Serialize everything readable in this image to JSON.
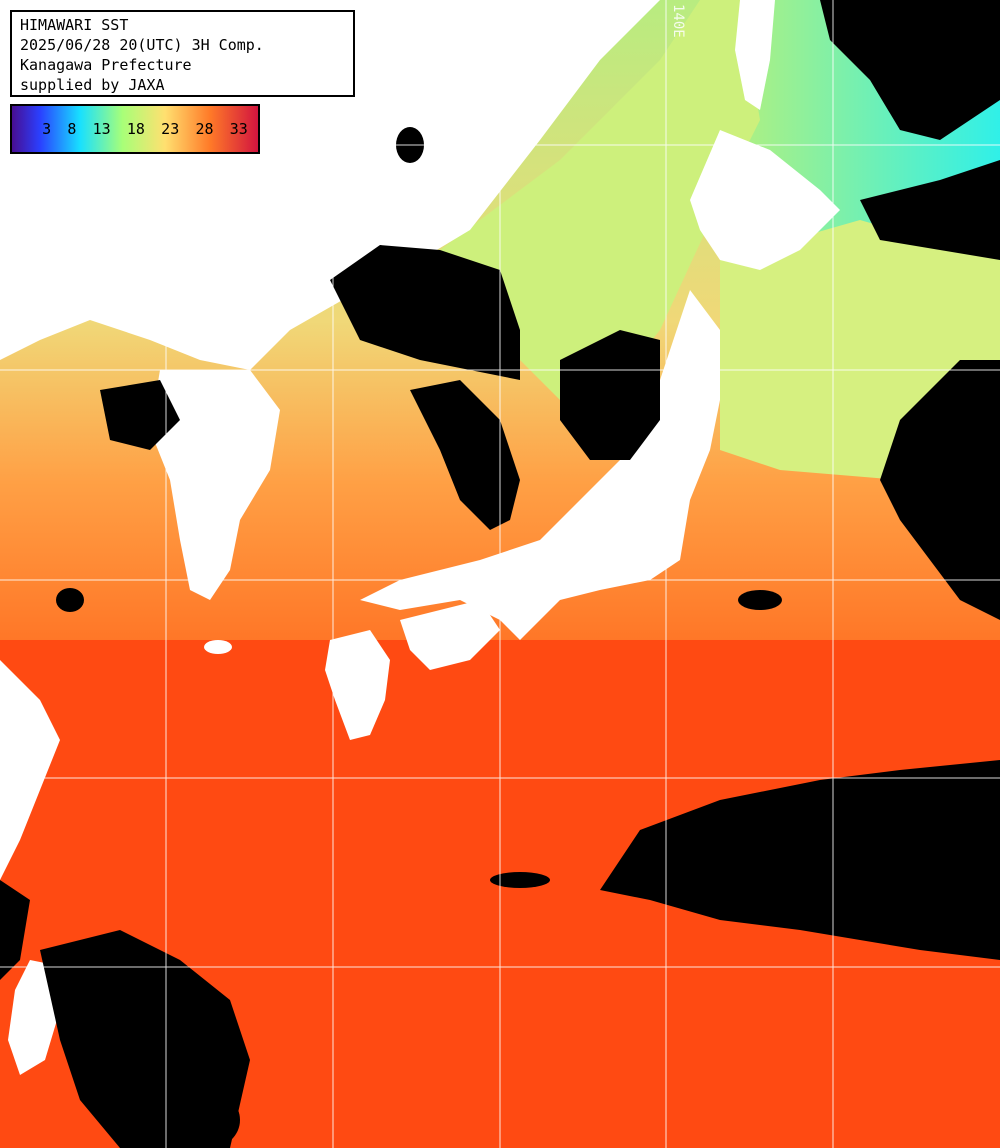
{
  "header": {
    "title": "HIMAWARI SST",
    "datetime": "2025/06/28 20(UTC) 3H Comp.",
    "region": "Kanagawa Prefecture",
    "supplier": "supplied by JAXA"
  },
  "colorbar": {
    "ticks": [
      "3",
      "8",
      "13",
      "18",
      "23",
      "28",
      "33"
    ],
    "colors": [
      "#5a12a0",
      "#1a4fff",
      "#19e6ff",
      "#9dff7a",
      "#ffe878",
      "#ff8a30",
      "#d81030"
    ]
  },
  "grid": {
    "longitude_label": "140E"
  },
  "colors": {
    "land": "#ffffff",
    "cloud": "#000000",
    "warm_sea": "#ff4a10",
    "mid_sea": "#ff9a3a",
    "cool_sea": "#c8f080",
    "cold_sea": "#40f0e0",
    "gridline": "#ffffff"
  }
}
